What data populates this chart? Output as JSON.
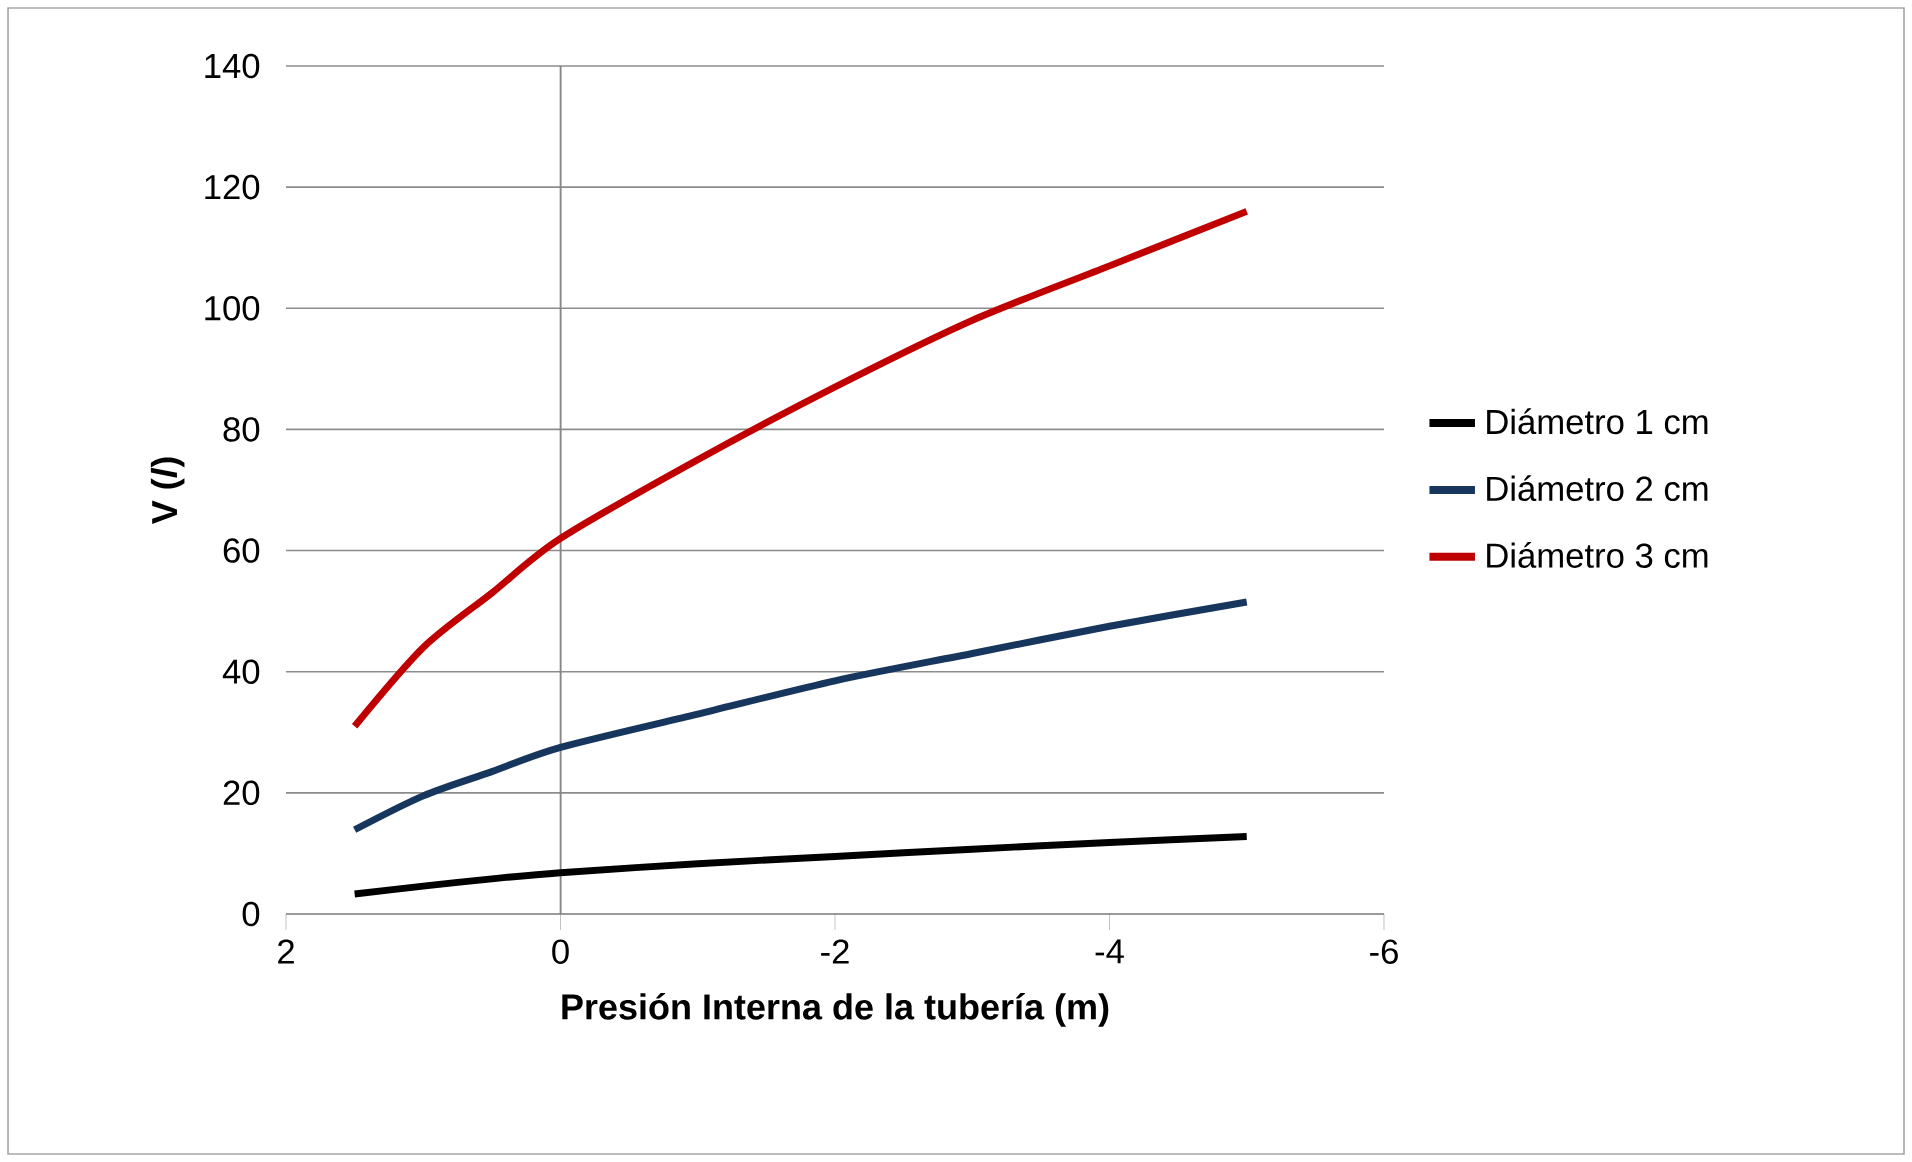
{
  "chart_data": {
    "type": "line",
    "xlabel": "Presión Interna de la tubería (m)",
    "ylabel": "V (*l*)",
    "x": [
      1.5,
      1,
      0.5,
      0,
      -1,
      -2,
      -3,
      -4,
      -5
    ],
    "series": [
      {
        "name": "Diámetro 1 cm",
        "color": "#000000",
        "values": [
          3.3,
          4.6,
          5.8,
          6.8,
          8.3,
          9.5,
          10.7,
          11.8,
          12.8
        ]
      },
      {
        "name": "Diámetro 2 cm",
        "color": "#17365d",
        "values": [
          13.9,
          19.5,
          23.5,
          27.5,
          33,
          38.5,
          43,
          47.5,
          51.5
        ]
      },
      {
        "name": "Diámetro 3 cm",
        "color": "#c00000",
        "values": [
          31,
          44,
          53,
          62,
          75,
          87,
          98,
          107,
          116
        ]
      }
    ],
    "xlim": [
      2,
      -6
    ],
    "xticks": [
      2,
      0,
      -2,
      -4,
      -6
    ],
    "ylim": [
      0,
      140
    ],
    "yticks": [
      0,
      20,
      40,
      60,
      80,
      100,
      120,
      140
    ],
    "grid": "y",
    "legend": "right",
    "marker": "none",
    "line_style": "solid",
    "ref_lines": [
      {
        "axis": "x",
        "value": 0,
        "color": "#868686"
      }
    ]
  }
}
